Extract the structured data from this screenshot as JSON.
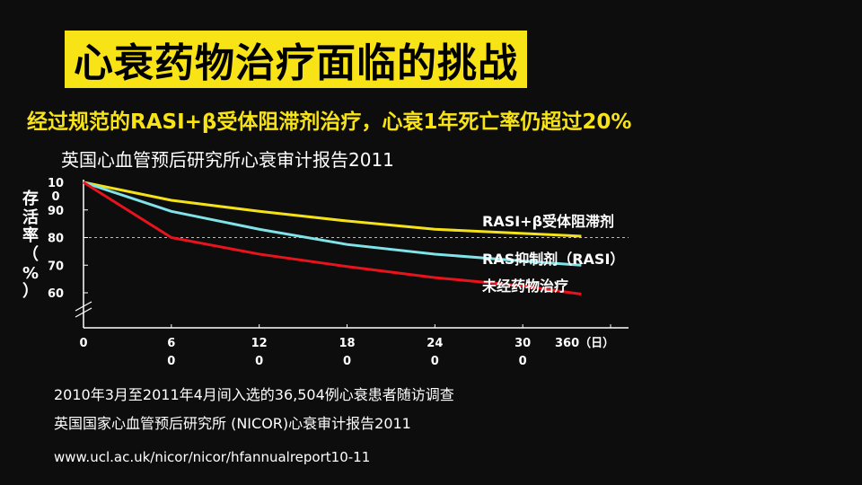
{
  "slide": {
    "title": "心衰药物治疗面临的挑战",
    "subtitle": "经过规范的RASI+β受体阻滞剂治疗，心衰1年死亡率仍超过20%",
    "report": "英国心血管预后研究所心衰审计报告2011",
    "note1": "2010年3月至2011年4月间入选的36,504例心衰患者随访调查",
    "note2": "英国国家心血管预后研究所 (NICOR)心衰审计报告2011",
    "url": "www.ucl.ac.uk/nicor/nicor/hfannualreport10-11"
  },
  "chart_data": {
    "type": "line",
    "ylabel": "存活率（%）",
    "xlabel": "",
    "xlim": [
      0,
      360
    ],
    "ylim": [
      60,
      100
    ],
    "x_ticks": [
      {
        "value": 0,
        "label": "0"
      },
      {
        "value": 60,
        "label": "60"
      },
      {
        "value": 120,
        "label": "120"
      },
      {
        "value": 180,
        "label": "180"
      },
      {
        "value": 240,
        "label": "240"
      },
      {
        "value": 300,
        "label": "300"
      },
      {
        "value": 360,
        "label": "360（日）"
      }
    ],
    "y_ticks": [
      {
        "value": 100,
        "label": "100"
      },
      {
        "value": 90,
        "label": "90"
      },
      {
        "value": 80,
        "label": "80"
      },
      {
        "value": 70,
        "label": "70"
      },
      {
        "value": 60,
        "label": "60"
      }
    ],
    "reference_line": 80,
    "series": [
      {
        "name": "RASI+β受体阻滞剂",
        "color": "#f5e11a",
        "x": [
          0,
          60,
          120,
          180,
          240,
          300,
          340
        ],
        "y": [
          100,
          93.5,
          89.5,
          86,
          83,
          81.5,
          80.5
        ]
      },
      {
        "name": "RAS抑制剂（RASI）",
        "color": "#7fe3e8",
        "x": [
          0,
          60,
          120,
          180,
          240,
          300,
          340
        ],
        "y": [
          100,
          89.5,
          83,
          77.5,
          74,
          71.5,
          70
        ]
      },
      {
        "name": "未经药物治疗",
        "color": "#e8131d",
        "x": [
          0,
          60,
          120,
          180,
          240,
          300,
          340
        ],
        "y": [
          100,
          80,
          74,
          69.5,
          65.5,
          62.5,
          59.5
        ]
      }
    ]
  }
}
